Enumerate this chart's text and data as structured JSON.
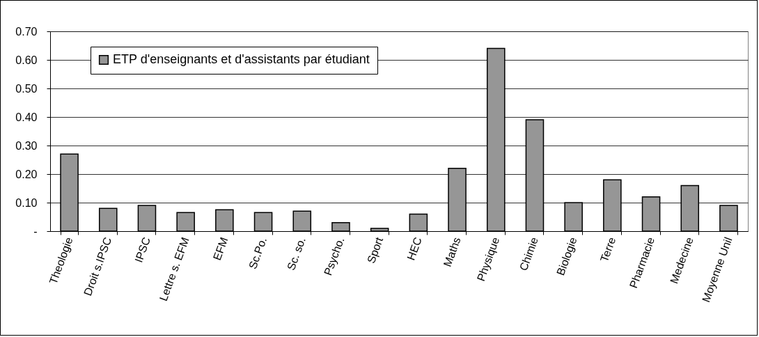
{
  "chart_data": {
    "type": "bar",
    "categories": [
      "Theologie",
      "Droit s.IPSC",
      "IPSC",
      "Lettre s. EFM",
      "EFM",
      "Sc.Po.",
      "Sc. so.",
      "Psycho.",
      "Sport",
      "HEC",
      "Maths",
      "Physique",
      "Chimie",
      "Biologie",
      "Terre",
      "Pharmacie",
      "Medecine",
      "Moyenne Unil"
    ],
    "series": [
      {
        "name": "ETP d'enseignants et d'assistants par étudiant",
        "color": "#969696",
        "values": [
          0.27,
          0.08,
          0.09,
          0.065,
          0.075,
          0.065,
          0.07,
          0.03,
          0.01,
          0.06,
          0.22,
          0.64,
          0.39,
          0.1,
          0.18,
          0.12,
          0.16,
          0.09
        ]
      }
    ],
    "ylim": [
      0,
      0.7
    ],
    "yticks": [
      {
        "value": 0,
        "label": "-"
      },
      {
        "value": 0.1,
        "label": "0.10"
      },
      {
        "value": 0.2,
        "label": "0.20"
      },
      {
        "value": 0.3,
        "label": "0.30"
      },
      {
        "value": 0.4,
        "label": "0.40"
      },
      {
        "value": 0.5,
        "label": "0.50"
      },
      {
        "value": 0.6,
        "label": "0.60"
      },
      {
        "value": 0.7,
        "label": "0.70"
      }
    ],
    "grid": "y",
    "legend": "top left"
  }
}
